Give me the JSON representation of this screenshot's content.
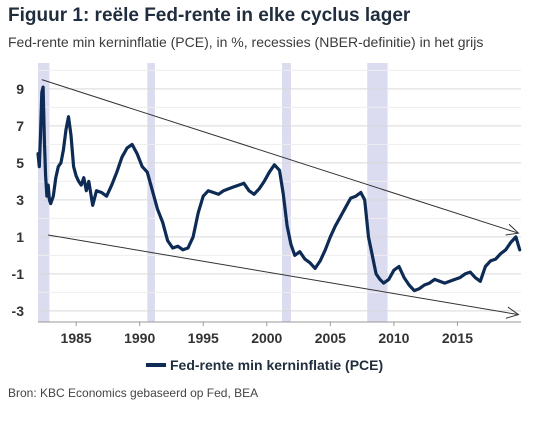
{
  "header": {
    "title": "Figuur 1: reële Fed-rente in elke cyclus lager",
    "subtitle": "Fed-rente min kerninflatie (PCE), in %, recessies (NBER-definitie) in het grijs"
  },
  "footer": {
    "source": "Bron: KBC Economics gebaseerd op Fed, BEA"
  },
  "chart_data": {
    "type": "line",
    "title": "Figuur 1: reële Fed-rente in elke cyclus lager",
    "subtitle": "Fed-rente min kerninflatie (PCE), in %, recessies (NBER-definitie) in het grijs",
    "xlabel": "",
    "ylabel": "",
    "xlim": [
      1982.0,
      2020.0
    ],
    "ylim": [
      -3.6,
      10.4
    ],
    "x_ticks": [
      1985,
      1990,
      1995,
      2000,
      2005,
      2010,
      2015
    ],
    "y_ticks": [
      9,
      7,
      5,
      3,
      1,
      -1,
      -3
    ],
    "grid": "horizontal",
    "legend": {
      "position": "bottom",
      "entries": [
        "Fed-rente min kerninflatie (PCE)"
      ]
    },
    "colors": {
      "line": "#0d2b55",
      "recession": "#dcdcf0",
      "trend": "#333333",
      "grid": "#d9d9d9"
    },
    "recessions": [
      [
        1981.6,
        1982.9
      ],
      [
        1990.6,
        1991.2
      ],
      [
        2001.2,
        2001.9
      ],
      [
        2007.9,
        2009.5
      ]
    ],
    "trend_lines": [
      {
        "from": [
          1982.3,
          9.5
        ],
        "to": [
          2019.8,
          1.2
        ]
      },
      {
        "from": [
          1982.8,
          1.1
        ],
        "to": [
          2019.8,
          -3.2
        ]
      }
    ],
    "series": [
      {
        "name": "Fed-rente min kerninflatie (PCE)",
        "x": [
          1982.0,
          1982.1,
          1982.2,
          1982.3,
          1982.4,
          1982.5,
          1982.6,
          1982.7,
          1982.8,
          1982.9,
          1983.0,
          1983.2,
          1983.4,
          1983.6,
          1983.8,
          1984.0,
          1984.2,
          1984.4,
          1984.6,
          1984.8,
          1985.0,
          1985.2,
          1985.4,
          1985.6,
          1985.8,
          1986.0,
          1986.3,
          1986.6,
          1987.0,
          1987.4,
          1987.8,
          1988.2,
          1988.6,
          1989.0,
          1989.4,
          1989.8,
          1990.2,
          1990.6,
          1991.0,
          1991.4,
          1991.8,
          1992.2,
          1992.6,
          1993.0,
          1993.4,
          1993.8,
          1994.2,
          1994.6,
          1995.0,
          1995.4,
          1995.8,
          1996.2,
          1996.6,
          1997.0,
          1997.4,
          1997.8,
          1998.2,
          1998.6,
          1999.0,
          1999.4,
          1999.8,
          2000.2,
          2000.6,
          2001.0,
          2001.3,
          2001.6,
          2001.9,
          2002.2,
          2002.6,
          2003.0,
          2003.4,
          2003.8,
          2004.2,
          2004.6,
          2005.0,
          2005.4,
          2005.8,
          2006.2,
          2006.6,
          2007.0,
          2007.4,
          2007.7,
          2008.0,
          2008.3,
          2008.6,
          2008.9,
          2009.2,
          2009.6,
          2010.0,
          2010.4,
          2010.8,
          2011.2,
          2011.6,
          2012.0,
          2012.4,
          2012.8,
          2013.2,
          2013.6,
          2014.0,
          2014.4,
          2014.8,
          2015.2,
          2015.6,
          2016.0,
          2016.4,
          2016.8,
          2017.2,
          2017.6,
          2018.0,
          2018.4,
          2018.8,
          2019.2,
          2019.6,
          2019.9
        ],
        "y": [
          5.5,
          4.8,
          6.5,
          8.8,
          9.1,
          6.2,
          4.3,
          3.2,
          3.8,
          3.0,
          2.8,
          3.2,
          4.2,
          4.8,
          5.0,
          5.7,
          6.8,
          7.5,
          6.5,
          4.8,
          4.3,
          4.0,
          3.8,
          4.2,
          3.5,
          4.0,
          2.7,
          3.5,
          3.4,
          3.2,
          3.8,
          4.5,
          5.3,
          5.8,
          6.0,
          5.5,
          4.8,
          4.5,
          3.5,
          2.5,
          1.8,
          0.8,
          0.4,
          0.5,
          0.3,
          0.4,
          1.0,
          2.3,
          3.2,
          3.5,
          3.4,
          3.3,
          3.5,
          3.6,
          3.7,
          3.8,
          3.9,
          3.5,
          3.3,
          3.6,
          4.0,
          4.5,
          4.9,
          4.6,
          3.3,
          1.6,
          0.6,
          0.0,
          0.2,
          -0.2,
          -0.4,
          -0.7,
          -0.3,
          0.3,
          1.0,
          1.6,
          2.1,
          2.6,
          3.1,
          3.2,
          3.4,
          3.0,
          1.0,
          0.0,
          -1.0,
          -1.3,
          -1.5,
          -1.3,
          -0.8,
          -0.6,
          -1.2,
          -1.6,
          -1.9,
          -1.8,
          -1.6,
          -1.5,
          -1.3,
          -1.4,
          -1.5,
          -1.4,
          -1.3,
          -1.2,
          -1.0,
          -0.9,
          -1.2,
          -1.4,
          -0.6,
          -0.3,
          -0.2,
          0.1,
          0.3,
          0.7,
          1.0,
          0.3
        ]
      }
    ]
  }
}
